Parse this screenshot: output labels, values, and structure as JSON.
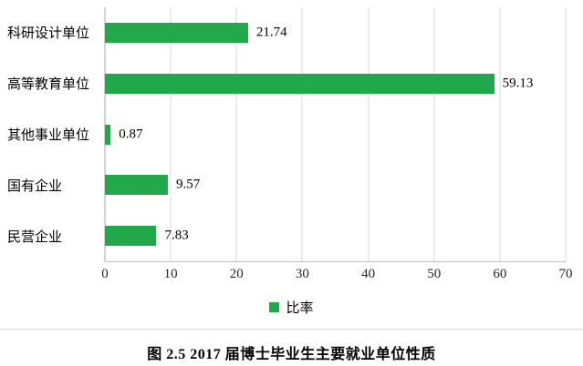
{
  "chart_data": {
    "type": "bar",
    "orientation": "horizontal",
    "categories": [
      "科研设计单位",
      "高等教育单位",
      "其他事业单位",
      "国有企业",
      "民营企业"
    ],
    "values": [
      21.74,
      59.13,
      0.87,
      9.57,
      7.83
    ],
    "value_labels": [
      "21.74",
      "59.13",
      "0.87",
      "9.57",
      "7.83"
    ],
    "xlim": [
      0,
      70
    ],
    "x_ticks": [
      0,
      10,
      20,
      30,
      40,
      50,
      60,
      70
    ],
    "grid": "vertical",
    "bar_color": "#22a74b",
    "legend": {
      "label": "比率",
      "position": "bottom"
    }
  },
  "caption": "图 2.5  2017 届博士毕业生主要就业单位性质"
}
